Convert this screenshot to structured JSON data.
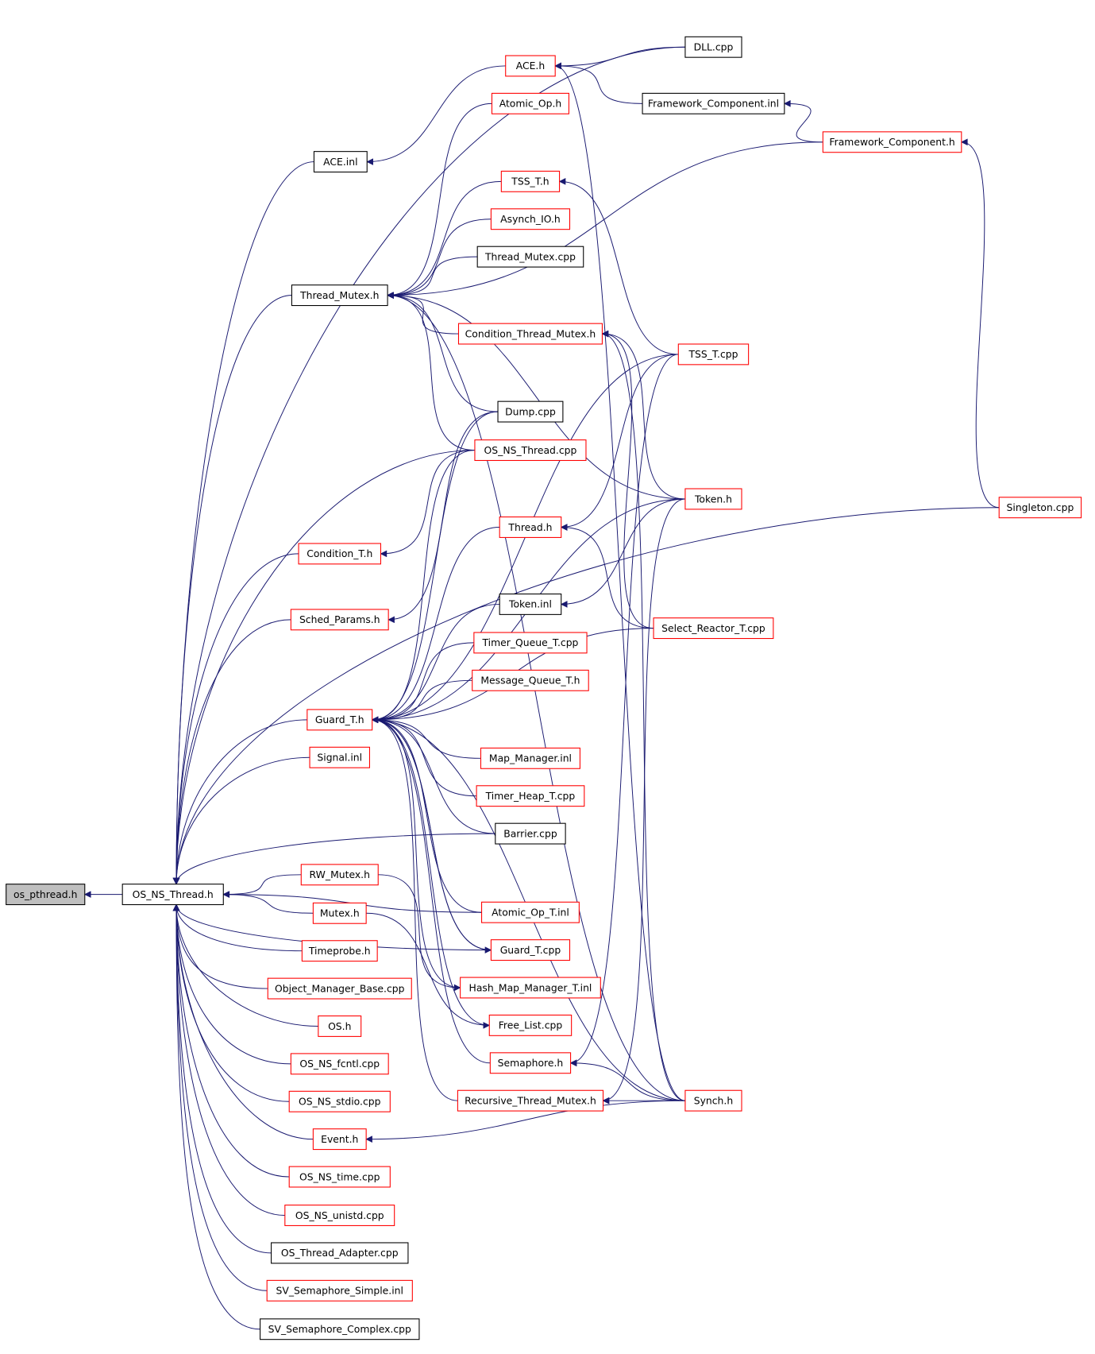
{
  "colors": {
    "edge": "#191970",
    "root_fill": "#bfbfbf",
    "documented_border": "#000000",
    "undocumented_border": "#ff0000"
  },
  "nodes": [
    {
      "label": "os_pthread.h",
      "style": "root"
    },
    {
      "label": "OS_NS_Thread.h",
      "style": "black"
    },
    {
      "label": "DLL.cpp",
      "style": "black"
    },
    {
      "label": "ACE.h",
      "style": "red"
    },
    {
      "label": "Framework_Component.inl",
      "style": "black"
    },
    {
      "label": "Atomic_Op.h",
      "style": "red"
    },
    {
      "label": "Framework_Component.h",
      "style": "red"
    },
    {
      "label": "ACE.inl",
      "style": "black"
    },
    {
      "label": "TSS_T.h",
      "style": "red"
    },
    {
      "label": "Asynch_IO.h",
      "style": "red"
    },
    {
      "label": "Thread_Mutex.cpp",
      "style": "black"
    },
    {
      "label": "Thread_Mutex.h",
      "style": "black"
    },
    {
      "label": "Condition_Thread_Mutex.h",
      "style": "red"
    },
    {
      "label": "TSS_T.cpp",
      "style": "red"
    },
    {
      "label": "Dump.cpp",
      "style": "black"
    },
    {
      "label": "OS_NS_Thread.cpp",
      "style": "red"
    },
    {
      "label": "Token.h",
      "style": "red"
    },
    {
      "label": "Singleton.cpp",
      "style": "red"
    },
    {
      "label": "Thread.h",
      "style": "red"
    },
    {
      "label": "Condition_T.h",
      "style": "red"
    },
    {
      "label": "Token.inl",
      "style": "black"
    },
    {
      "label": "Sched_Params.h",
      "style": "red"
    },
    {
      "label": "Select_Reactor_T.cpp",
      "style": "red"
    },
    {
      "label": "Timer_Queue_T.cpp",
      "style": "red"
    },
    {
      "label": "Message_Queue_T.h",
      "style": "red"
    },
    {
      "label": "Guard_T.h",
      "style": "red"
    },
    {
      "label": "Signal.inl",
      "style": "red"
    },
    {
      "label": "Map_Manager.inl",
      "style": "red"
    },
    {
      "label": "Timer_Heap_T.cpp",
      "style": "red"
    },
    {
      "label": "Barrier.cpp",
      "style": "black"
    },
    {
      "label": "RW_Mutex.h",
      "style": "red"
    },
    {
      "label": "Atomic_Op_T.inl",
      "style": "red"
    },
    {
      "label": "Mutex.h",
      "style": "red"
    },
    {
      "label": "Guard_T.cpp",
      "style": "red"
    },
    {
      "label": "Timeprobe.h",
      "style": "red"
    },
    {
      "label": "Hash_Map_Manager_T.inl",
      "style": "red"
    },
    {
      "label": "Object_Manager_Base.cpp",
      "style": "red"
    },
    {
      "label": "Free_List.cpp",
      "style": "red"
    },
    {
      "label": "OS.h",
      "style": "red"
    },
    {
      "label": "Semaphore.h",
      "style": "red"
    },
    {
      "label": "OS_NS_fcntl.cpp",
      "style": "red"
    },
    {
      "label": "Recursive_Thread_Mutex.h",
      "style": "red"
    },
    {
      "label": "Synch.h",
      "style": "red"
    },
    {
      "label": "OS_NS_stdio.cpp",
      "style": "red"
    },
    {
      "label": "Event.h",
      "style": "red"
    },
    {
      "label": "OS_NS_time.cpp",
      "style": "red"
    },
    {
      "label": "OS_NS_unistd.cpp",
      "style": "red"
    },
    {
      "label": "OS_Thread_Adapter.cpp",
      "style": "black"
    },
    {
      "label": "SV_Semaphore_Simple.inl",
      "style": "red"
    },
    {
      "label": "SV_Semaphore_Complex.cpp",
      "style": "black"
    }
  ],
  "edges": [
    [
      1,
      0
    ],
    [
      2,
      1
    ],
    [
      7,
      1
    ],
    [
      11,
      1
    ],
    [
      15,
      1
    ],
    [
      19,
      1
    ],
    [
      21,
      1
    ],
    [
      25,
      1
    ],
    [
      26,
      1
    ],
    [
      30,
      1
    ],
    [
      32,
      1
    ],
    [
      34,
      1
    ],
    [
      36,
      1
    ],
    [
      38,
      1
    ],
    [
      40,
      1
    ],
    [
      43,
      1
    ],
    [
      44,
      1
    ],
    [
      45,
      1
    ],
    [
      46,
      1
    ],
    [
      47,
      1
    ],
    [
      48,
      1
    ],
    [
      49,
      1
    ],
    [
      31,
      1
    ],
    [
      33,
      1
    ],
    [
      29,
      1
    ],
    [
      17,
      1
    ],
    [
      3,
      7
    ],
    [
      2,
      3
    ],
    [
      4,
      3
    ],
    [
      42,
      3
    ],
    [
      6,
      4
    ],
    [
      17,
      6
    ],
    [
      6,
      11
    ],
    [
      5,
      11
    ],
    [
      8,
      11
    ],
    [
      9,
      11
    ],
    [
      10,
      11
    ],
    [
      12,
      11
    ],
    [
      14,
      11
    ],
    [
      15,
      11
    ],
    [
      16,
      11
    ],
    [
      42,
      11
    ],
    [
      13,
      8
    ],
    [
      16,
      12
    ],
    [
      22,
      12
    ],
    [
      42,
      12
    ],
    [
      13,
      18
    ],
    [
      22,
      18
    ],
    [
      16,
      20
    ],
    [
      15,
      19
    ],
    [
      14,
      21
    ],
    [
      14,
      25
    ],
    [
      15,
      25
    ],
    [
      18,
      25
    ],
    [
      20,
      25
    ],
    [
      23,
      25
    ],
    [
      24,
      25
    ],
    [
      22,
      25
    ],
    [
      27,
      25
    ],
    [
      28,
      25
    ],
    [
      29,
      25
    ],
    [
      31,
      25
    ],
    [
      33,
      25
    ],
    [
      35,
      25
    ],
    [
      37,
      25
    ],
    [
      39,
      25
    ],
    [
      41,
      25
    ],
    [
      42,
      25
    ],
    [
      13,
      25
    ],
    [
      16,
      25
    ],
    [
      25,
      33
    ],
    [
      30,
      35
    ],
    [
      32,
      37
    ],
    [
      42,
      39
    ],
    [
      13,
      39
    ],
    [
      42,
      41
    ],
    [
      16,
      41
    ],
    [
      42,
      44
    ]
  ]
}
